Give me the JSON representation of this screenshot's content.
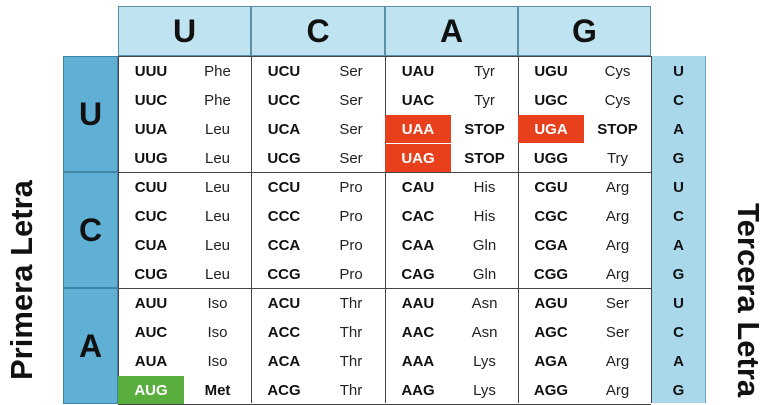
{
  "labels": {
    "primera": "Primera Letra",
    "tercera": "Tercera Letra"
  },
  "second_letters": [
    "U",
    "C",
    "A",
    "G"
  ],
  "first_letters": [
    "U",
    "C",
    "A"
  ],
  "third_letters": [
    "U",
    "C",
    "A",
    "G"
  ],
  "highlight_colors": {
    "stop_codon": "#e8401c",
    "start_codon": "#5aae3e",
    "header": "#bfe3f0",
    "row_header": "#5fb0d4",
    "third_column": "#a9d8ea"
  },
  "rows": [
    [
      {
        "c": "UUU",
        "a": "Phe"
      },
      {
        "c": "UCU",
        "a": "Ser"
      },
      {
        "c": "UAU",
        "a": "Tyr"
      },
      {
        "c": "UGU",
        "a": "Cys"
      }
    ],
    [
      {
        "c": "UUC",
        "a": "Phe"
      },
      {
        "c": "UCC",
        "a": "Ser"
      },
      {
        "c": "UAC",
        "a": "Tyr"
      },
      {
        "c": "UGC",
        "a": "Cys"
      }
    ],
    [
      {
        "c": "UUA",
        "a": "Leu"
      },
      {
        "c": "UCA",
        "a": "Ser"
      },
      {
        "c": "UAA",
        "a": "STOP",
        "h": "red"
      },
      {
        "c": "UGA",
        "a": "STOP",
        "h": "red"
      }
    ],
    [
      {
        "c": "UUG",
        "a": "Leu"
      },
      {
        "c": "UCG",
        "a": "Ser"
      },
      {
        "c": "UAG",
        "a": "STOP",
        "h": "red"
      },
      {
        "c": "UGG",
        "a": "Try"
      }
    ],
    [
      {
        "c": "CUU",
        "a": "Leu"
      },
      {
        "c": "CCU",
        "a": "Pro"
      },
      {
        "c": "CAU",
        "a": "His"
      },
      {
        "c": "CGU",
        "a": "Arg"
      }
    ],
    [
      {
        "c": "CUC",
        "a": "Leu"
      },
      {
        "c": "CCC",
        "a": "Pro"
      },
      {
        "c": "CAC",
        "a": "His"
      },
      {
        "c": "CGC",
        "a": "Arg"
      }
    ],
    [
      {
        "c": "CUA",
        "a": "Leu"
      },
      {
        "c": "CCA",
        "a": "Pro"
      },
      {
        "c": "CAA",
        "a": "Gln"
      },
      {
        "c": "CGA",
        "a": "Arg"
      }
    ],
    [
      {
        "c": "CUG",
        "a": "Leu"
      },
      {
        "c": "CCG",
        "a": "Pro"
      },
      {
        "c": "CAG",
        "a": "Gln"
      },
      {
        "c": "CGG",
        "a": "Arg"
      }
    ],
    [
      {
        "c": "AUU",
        "a": "Iso"
      },
      {
        "c": "ACU",
        "a": "Thr"
      },
      {
        "c": "AAU",
        "a": "Asn"
      },
      {
        "c": "AGU",
        "a": "Ser"
      }
    ],
    [
      {
        "c": "AUC",
        "a": "Iso"
      },
      {
        "c": "ACC",
        "a": "Thr"
      },
      {
        "c": "AAC",
        "a": "Asn"
      },
      {
        "c": "AGC",
        "a": "Ser"
      }
    ],
    [
      {
        "c": "AUA",
        "a": "Iso"
      },
      {
        "c": "ACA",
        "a": "Thr"
      },
      {
        "c": "AAA",
        "a": "Lys"
      },
      {
        "c": "AGA",
        "a": "Arg"
      }
    ],
    [
      {
        "c": "AUG",
        "a": "Met",
        "h": "green"
      },
      {
        "c": "ACG",
        "a": "Thr"
      },
      {
        "c": "AAG",
        "a": "Lys"
      },
      {
        "c": "AGG",
        "a": "Arg"
      }
    ]
  ]
}
